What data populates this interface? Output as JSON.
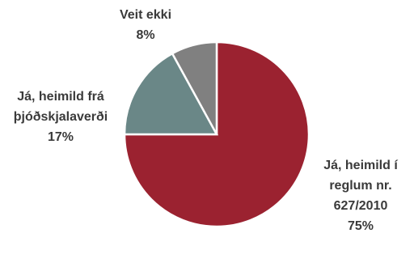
{
  "chart_data": {
    "type": "pie",
    "start_angle": "top",
    "direction": "clockwise",
    "slices": [
      {
        "label_lines": [
          "Já, heimild í",
          "reglum nr.",
          "627/2010"
        ],
        "pct_text": "75%",
        "value": 75,
        "color": "#9b2230"
      },
      {
        "label_lines": [
          "Já, heimild frá",
          "þjóðskjalaverði"
        ],
        "pct_text": "17%",
        "value": 17,
        "color": "#6a8787"
      },
      {
        "label_lines": [
          "Veit ekki"
        ],
        "pct_text": "8%",
        "value": 8,
        "color": "#808080"
      }
    ]
  }
}
